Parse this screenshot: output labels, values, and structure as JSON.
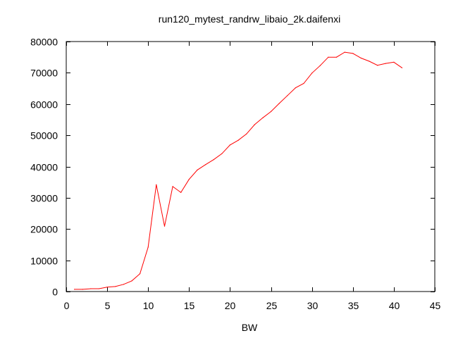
{
  "chart_data": {
    "type": "line",
    "title": "run120_mytest_randrw_libaio_2k.daifenxi",
    "xlabel": "BW",
    "ylabel": "",
    "xlim": [
      0,
      45
    ],
    "ylim": [
      0,
      80000
    ],
    "xticks": [
      0,
      5,
      10,
      15,
      20,
      25,
      30,
      35,
      40,
      45
    ],
    "yticks": [
      0,
      10000,
      20000,
      30000,
      40000,
      50000,
      60000,
      70000,
      80000
    ],
    "grid": false,
    "legend": "none",
    "colors": {
      "series": "#ff0000",
      "axis": "#000000",
      "background": "#ffffff"
    },
    "series": [
      {
        "name": "BW",
        "x": [
          1,
          2,
          3,
          4,
          5,
          6,
          7,
          8,
          9,
          10,
          11,
          12,
          13,
          14,
          15,
          16,
          17,
          18,
          19,
          20,
          21,
          22,
          23,
          24,
          25,
          26,
          27,
          28,
          29,
          30,
          31,
          32,
          33,
          34,
          35,
          36,
          37,
          38,
          39,
          40,
          41
        ],
        "y": [
          700,
          700,
          900,
          900,
          1400,
          1600,
          2300,
          3400,
          5700,
          14200,
          34200,
          20900,
          33600,
          31700,
          35900,
          38900,
          40600,
          42200,
          44100,
          46900,
          48400,
          50400,
          53400,
          55600,
          57600,
          60200,
          62700,
          65200,
          66600,
          69900,
          72300,
          75000,
          75000,
          76600,
          76200,
          74700,
          73700,
          72400,
          73000,
          73400,
          71600
        ]
      }
    ]
  }
}
